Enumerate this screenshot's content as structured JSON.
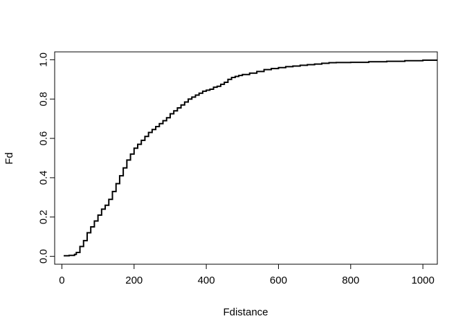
{
  "chart_data": {
    "type": "line",
    "title": "",
    "xlabel": "Fdistance",
    "ylabel": "Fd",
    "xlim": [
      -20,
      1040
    ],
    "ylim": [
      -0.04,
      1.04
    ],
    "xticks": [
      0,
      200,
      400,
      600,
      800,
      1000
    ],
    "xtick_labels": [
      "0",
      "200",
      "400",
      "600",
      "800",
      "1000"
    ],
    "yticks": [
      0.0,
      0.2,
      0.4,
      0.6,
      0.8,
      1.0
    ],
    "ytick_labels": [
      "0.0",
      "0.2",
      "0.4",
      "0.6",
      "0.8",
      "1.0"
    ],
    "grid": false,
    "legend": "none",
    "line_color": "#000000",
    "series": [
      {
        "x": [
          5,
          20,
          35,
          40,
          50,
          60,
          70,
          80,
          90,
          100,
          110,
          120,
          130,
          140,
          150,
          160,
          170,
          180,
          190,
          200,
          210,
          220,
          230,
          240,
          250,
          260,
          270,
          280,
          290,
          300,
          310,
          320,
          330,
          340,
          350,
          360,
          370,
          380,
          390,
          400,
          410,
          420,
          430,
          440,
          450,
          460,
          470,
          480,
          490,
          500,
          520,
          540,
          560,
          580,
          600,
          620,
          640,
          660,
          680,
          700,
          720,
          740,
          760,
          800,
          850,
          900,
          950,
          1000,
          1040
        ],
        "y": [
          0.003,
          0.005,
          0.01,
          0.02,
          0.05,
          0.08,
          0.12,
          0.15,
          0.18,
          0.21,
          0.24,
          0.26,
          0.29,
          0.33,
          0.37,
          0.41,
          0.45,
          0.49,
          0.52,
          0.55,
          0.57,
          0.59,
          0.61,
          0.63,
          0.645,
          0.66,
          0.675,
          0.69,
          0.705,
          0.725,
          0.74,
          0.755,
          0.77,
          0.785,
          0.8,
          0.81,
          0.82,
          0.83,
          0.84,
          0.845,
          0.85,
          0.86,
          0.865,
          0.875,
          0.885,
          0.9,
          0.91,
          0.915,
          0.92,
          0.925,
          0.932,
          0.94,
          0.95,
          0.955,
          0.96,
          0.965,
          0.968,
          0.972,
          0.975,
          0.978,
          0.982,
          0.985,
          0.986,
          0.987,
          0.99,
          0.992,
          0.995,
          0.998,
          1.0
        ]
      }
    ]
  }
}
